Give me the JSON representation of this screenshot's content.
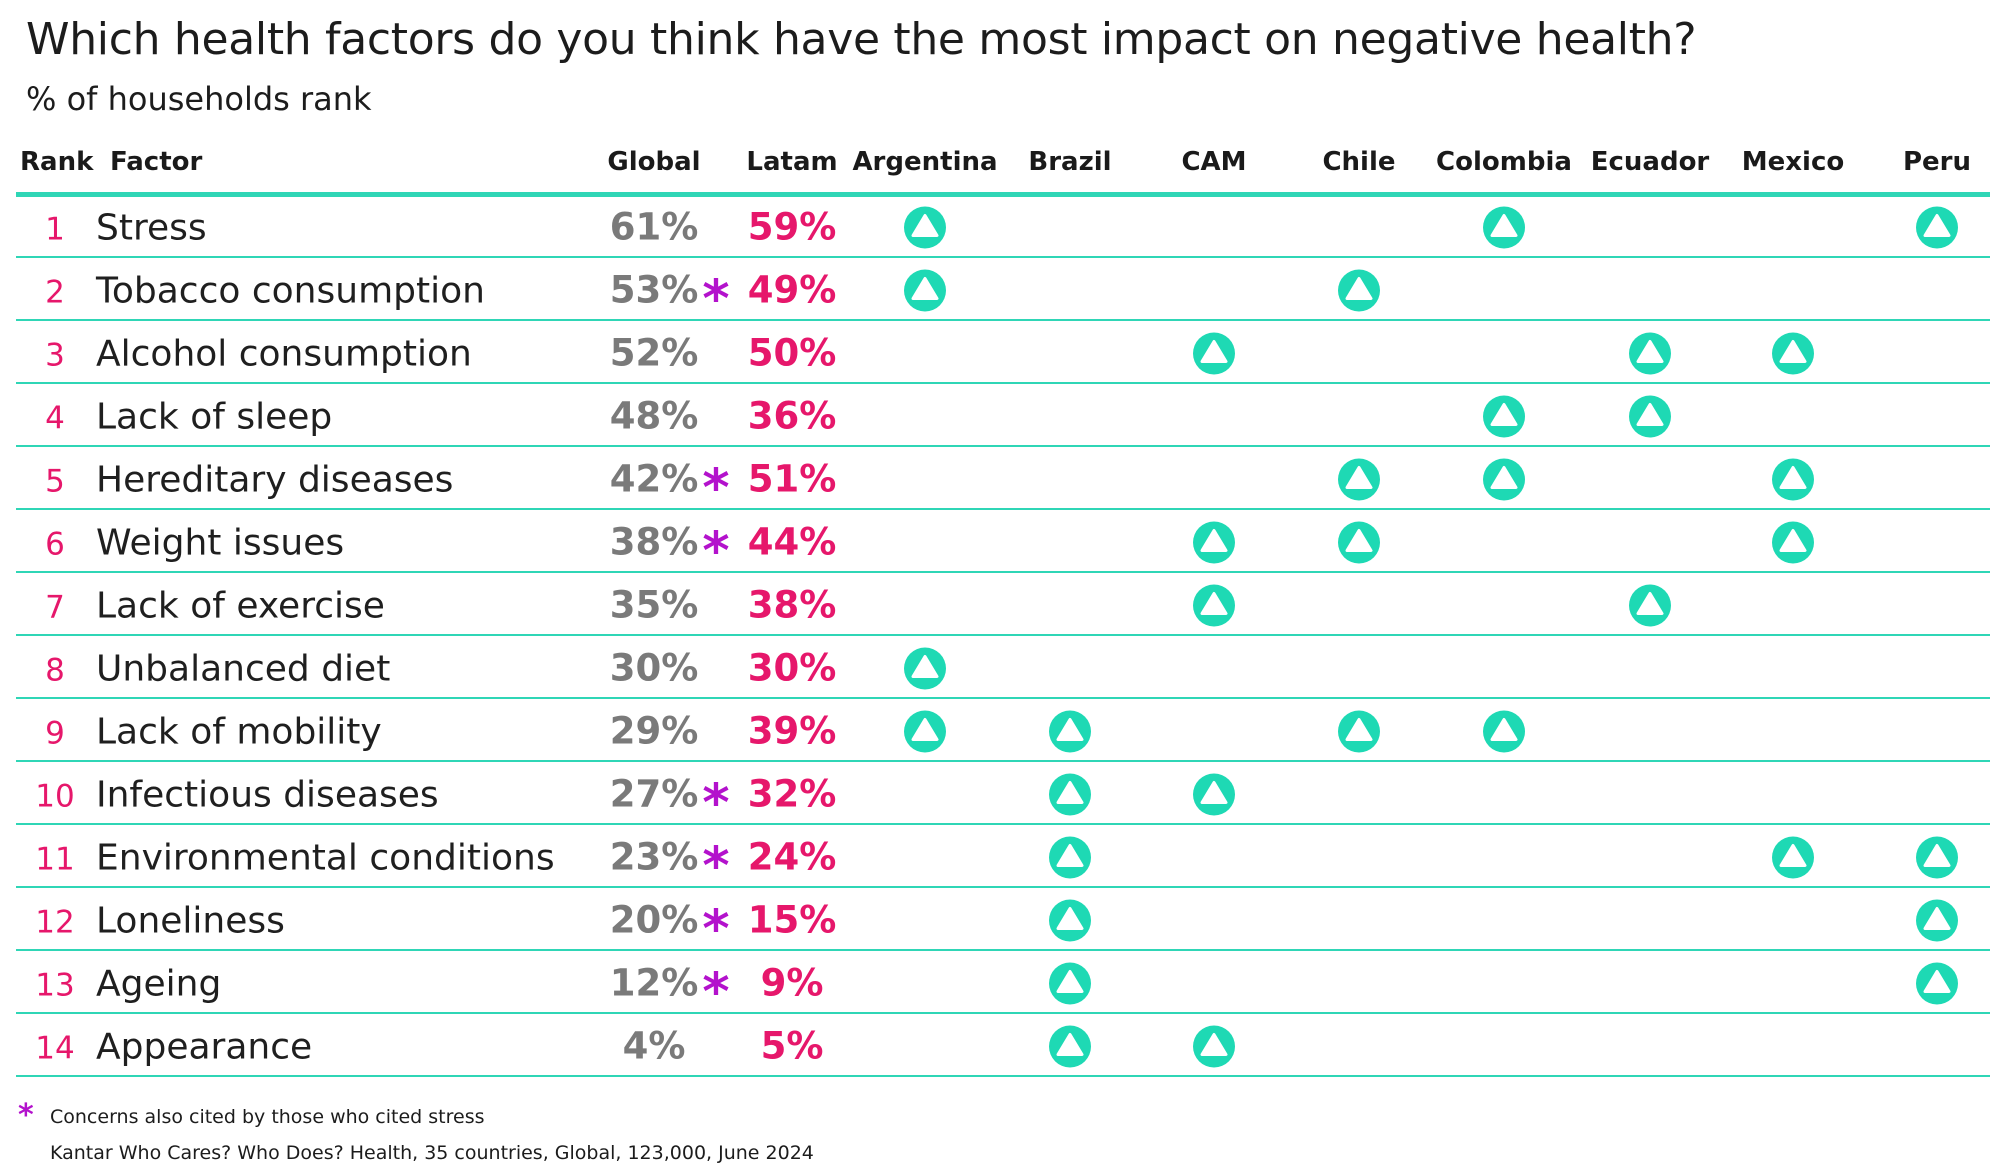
{
  "title": "Which health factors do you think have the most impact on negative health?",
  "subtitle": "% of households rank",
  "colors": {
    "accent": "#1ed9b4",
    "rank": "#e6176b",
    "latam": "#e6176b",
    "global": "#7a7a7a",
    "star": "#b312cc",
    "rule": "#2fd6b6"
  },
  "chart_data": {
    "type": "table",
    "columns": [
      "Rank",
      "Factor",
      "Global",
      "Latam",
      "Argentina",
      "Brazil",
      "CAM",
      "Chile",
      "Colombia",
      "Ecuador",
      "Mexico",
      "Peru"
    ],
    "countries": [
      "Argentina",
      "Brazil",
      "CAM",
      "Chile",
      "Colombia",
      "Ecuador",
      "Mexico",
      "Peru"
    ],
    "rows": [
      {
        "rank": "1",
        "factor": "Stress",
        "global": "61%",
        "latam": "59%",
        "star": false,
        "up": [
          "Argentina",
          "Colombia",
          "Peru"
        ]
      },
      {
        "rank": "2",
        "factor": "Tobacco consumption",
        "global": "53%",
        "latam": "49%",
        "star": true,
        "up": [
          "Argentina",
          "Chile"
        ]
      },
      {
        "rank": "3",
        "factor": "Alcohol consumption",
        "global": "52%",
        "latam": "50%",
        "star": false,
        "up": [
          "CAM",
          "Ecuador",
          "Mexico"
        ]
      },
      {
        "rank": "4",
        "factor": "Lack of sleep",
        "global": "48%",
        "latam": "36%",
        "star": false,
        "up": [
          "Colombia",
          "Ecuador"
        ]
      },
      {
        "rank": "5",
        "factor": "Hereditary diseases",
        "global": "42%",
        "latam": "51%",
        "star": true,
        "up": [
          "Chile",
          "Colombia",
          "Mexico"
        ]
      },
      {
        "rank": "6",
        "factor": "Weight issues",
        "global": "38%",
        "latam": "44%",
        "star": true,
        "up": [
          "CAM",
          "Chile",
          "Mexico"
        ]
      },
      {
        "rank": "7",
        "factor": "Lack of exercise",
        "global": "35%",
        "latam": "38%",
        "star": false,
        "up": [
          "CAM",
          "Ecuador"
        ]
      },
      {
        "rank": "8",
        "factor": "Unbalanced diet",
        "global": "30%",
        "latam": "30%",
        "star": false,
        "up": [
          "Argentina"
        ]
      },
      {
        "rank": "9",
        "factor": "Lack of mobility",
        "global": "29%",
        "latam": "39%",
        "star": false,
        "up": [
          "Argentina",
          "Brazil",
          "Chile",
          "Colombia"
        ]
      },
      {
        "rank": "10",
        "factor": "Infectious diseases",
        "global": "27%",
        "latam": "32%",
        "star": true,
        "up": [
          "Brazil",
          "CAM"
        ]
      },
      {
        "rank": "11",
        "factor": "Environmental conditions",
        "global": "23%",
        "latam": "24%",
        "star": true,
        "up": [
          "Brazil",
          "Mexico",
          "Peru"
        ]
      },
      {
        "rank": "12",
        "factor": "Loneliness",
        "global": "20%",
        "latam": "15%",
        "star": true,
        "up": [
          "Brazil",
          "Peru"
        ]
      },
      {
        "rank": "13",
        "factor": "Ageing",
        "global": "12%",
        "latam": "9%",
        "star": true,
        "up": [
          "Brazil",
          "Peru"
        ]
      },
      {
        "rank": "14",
        "factor": "Appearance",
        "global": "4%",
        "latam": "5%",
        "star": false,
        "up": [
          "Brazil",
          "CAM"
        ]
      }
    ],
    "star_symbol": "*",
    "up_icon": "up-triangle-circle-icon"
  },
  "footnote": "Concerns also cited by those who cited stress",
  "source": "Kantar Who Cares? Who Does? Health, 35 countries, Global, 123,000, June 2024"
}
